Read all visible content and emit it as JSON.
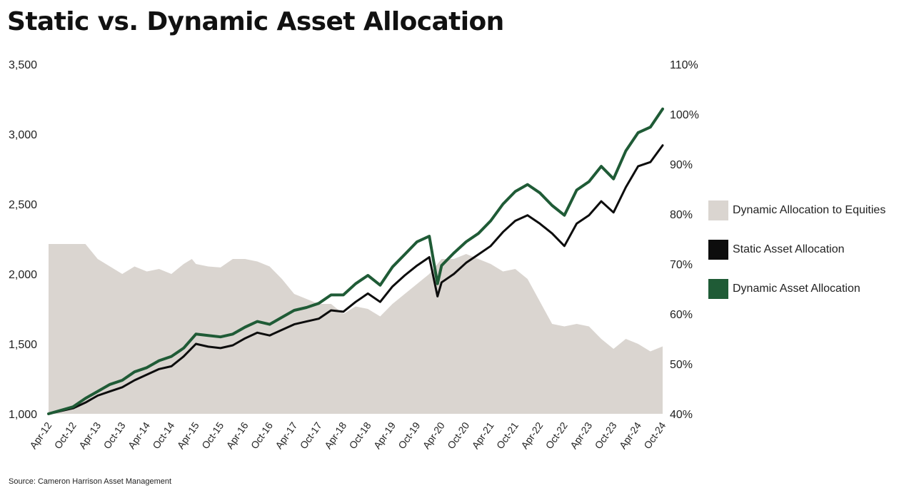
{
  "title": "Static vs. Dynamic Asset Allocation",
  "source": "Source: Cameron Harrison Asset Management",
  "colors": {
    "area": "#dad5d0",
    "static": "#0d0d0d",
    "dynamic": "#1f5b36"
  },
  "legend": [
    {
      "label": "Dynamic Allocation to Equities",
      "color": "#dad5d0"
    },
    {
      "label": "Static Asset Allocation",
      "color": "#0d0d0d"
    },
    {
      "label": "Dynamic Asset Allocation",
      "color": "#1f5b36"
    }
  ],
  "chart_data": {
    "type": "line",
    "left_axis": {
      "range": [
        1000,
        3500
      ],
      "ticks": [
        "1,000",
        "1,500",
        "2,000",
        "2,500",
        "3,000",
        "3,500"
      ]
    },
    "right_axis": {
      "range": [
        40,
        110
      ],
      "ticks": [
        "40%",
        "50%",
        "60%",
        "70%",
        "80%",
        "90%",
        "100%",
        "110%"
      ]
    },
    "x_tick_labels": [
      "Apr-12",
      "Oct-12",
      "Apr-13",
      "Oct-13",
      "Apr-14",
      "Oct-14",
      "Apr-15",
      "Oct-15",
      "Apr-16",
      "Oct-16",
      "Apr-17",
      "Oct-17",
      "Apr-18",
      "Oct-18",
      "Apr-19",
      "Oct-19",
      "Apr-20",
      "Oct-20",
      "Apr-21",
      "Oct-21",
      "Apr-22",
      "Oct-22",
      "Apr-23",
      "Oct-23",
      "Apr-24",
      "Oct-24"
    ],
    "grid": false,
    "legend_position": "right",
    "series": [
      {
        "name": "Dynamic Allocation to Equities",
        "type": "area",
        "axis": "right",
        "points": [
          [
            "Apr-12",
            74
          ],
          [
            "Oct-12",
            74
          ],
          [
            "Jan-13",
            74
          ],
          [
            "Apr-13",
            71
          ],
          [
            "Jul-13",
            69.5
          ],
          [
            "Oct-13",
            68
          ],
          [
            "Jan-14",
            69.5
          ],
          [
            "Apr-14",
            68.5
          ],
          [
            "Jul-14",
            69
          ],
          [
            "Oct-14",
            68
          ],
          [
            "Jan-15",
            70
          ],
          [
            "Mar-15",
            71
          ],
          [
            "Apr-15",
            70
          ],
          [
            "Jul-15",
            69.5
          ],
          [
            "Oct-15",
            69.3
          ],
          [
            "Jan-16",
            71
          ],
          [
            "Apr-16",
            71
          ],
          [
            "Jul-16",
            70.5
          ],
          [
            "Oct-16",
            69.5
          ],
          [
            "Jan-17",
            67
          ],
          [
            "Apr-17",
            64
          ],
          [
            "Jul-17",
            63
          ],
          [
            "Oct-17",
            62
          ],
          [
            "Jan-18",
            62
          ],
          [
            "Apr-18",
            60
          ],
          [
            "Jul-18",
            61.5
          ],
          [
            "Oct-18",
            61
          ],
          [
            "Jan-19",
            59.5
          ],
          [
            "Apr-19",
            62
          ],
          [
            "Jul-19",
            64
          ],
          [
            "Oct-19",
            66
          ],
          [
            "Jan-20",
            68
          ],
          [
            "Apr-20",
            71
          ],
          [
            "Jul-20",
            71
          ],
          [
            "Oct-20",
            72
          ],
          [
            "Jan-21",
            71
          ],
          [
            "Apr-21",
            70
          ],
          [
            "Jul-21",
            68.5
          ],
          [
            "Oct-21",
            69
          ],
          [
            "Jan-22",
            67
          ],
          [
            "Apr-22",
            62.5
          ],
          [
            "Jul-22",
            58
          ],
          [
            "Oct-22",
            57.5
          ],
          [
            "Jan-23",
            58
          ],
          [
            "Apr-23",
            57.5
          ],
          [
            "Jul-23",
            55
          ],
          [
            "Oct-23",
            53
          ],
          [
            "Jan-24",
            55
          ],
          [
            "Apr-24",
            54
          ],
          [
            "Jul-24",
            52.5
          ],
          [
            "Oct-24",
            53.5
          ]
        ]
      },
      {
        "name": "Static Asset Allocation",
        "type": "line",
        "axis": "left",
        "points": [
          [
            "Apr-12",
            1000
          ],
          [
            "Oct-12",
            1040
          ],
          [
            "Jan-13",
            1080
          ],
          [
            "Apr-13",
            1130
          ],
          [
            "Jul-13",
            1160
          ],
          [
            "Oct-13",
            1190
          ],
          [
            "Jan-14",
            1240
          ],
          [
            "Apr-14",
            1280
          ],
          [
            "Jul-14",
            1320
          ],
          [
            "Oct-14",
            1340
          ],
          [
            "Jan-15",
            1410
          ],
          [
            "Apr-15",
            1500
          ],
          [
            "Jul-15",
            1480
          ],
          [
            "Oct-15",
            1470
          ],
          [
            "Jan-16",
            1490
          ],
          [
            "Apr-16",
            1540
          ],
          [
            "Jul-16",
            1580
          ],
          [
            "Oct-16",
            1560
          ],
          [
            "Jan-17",
            1600
          ],
          [
            "Apr-17",
            1640
          ],
          [
            "Jul-17",
            1660
          ],
          [
            "Oct-17",
            1680
          ],
          [
            "Jan-18",
            1740
          ],
          [
            "Apr-18",
            1730
          ],
          [
            "Jul-18",
            1800
          ],
          [
            "Oct-18",
            1860
          ],
          [
            "Jan-19",
            1800
          ],
          [
            "Apr-19",
            1910
          ],
          [
            "Jul-19",
            1990
          ],
          [
            "Oct-19",
            2060
          ],
          [
            "Jan-20",
            2120
          ],
          [
            "Mar-20",
            1840
          ],
          [
            "Apr-20",
            1940
          ],
          [
            "Jul-20",
            2000
          ],
          [
            "Oct-20",
            2080
          ],
          [
            "Jan-21",
            2140
          ],
          [
            "Apr-21",
            2200
          ],
          [
            "Jul-21",
            2300
          ],
          [
            "Oct-21",
            2380
          ],
          [
            "Jan-22",
            2420
          ],
          [
            "Apr-22",
            2360
          ],
          [
            "Jul-22",
            2290
          ],
          [
            "Oct-22",
            2200
          ],
          [
            "Jan-23",
            2360
          ],
          [
            "Apr-23",
            2420
          ],
          [
            "Jul-23",
            2520
          ],
          [
            "Oct-23",
            2440
          ],
          [
            "Jan-24",
            2620
          ],
          [
            "Apr-24",
            2770
          ],
          [
            "Jul-24",
            2800
          ],
          [
            "Oct-24",
            2920
          ]
        ]
      },
      {
        "name": "Dynamic Asset Allocation",
        "type": "line",
        "axis": "left",
        "points": [
          [
            "Apr-12",
            1000
          ],
          [
            "Oct-12",
            1050
          ],
          [
            "Jan-13",
            1110
          ],
          [
            "Apr-13",
            1160
          ],
          [
            "Jul-13",
            1210
          ],
          [
            "Oct-13",
            1240
          ],
          [
            "Jan-14",
            1300
          ],
          [
            "Apr-14",
            1330
          ],
          [
            "Jul-14",
            1380
          ],
          [
            "Oct-14",
            1410
          ],
          [
            "Jan-15",
            1470
          ],
          [
            "Apr-15",
            1570
          ],
          [
            "Jul-15",
            1560
          ],
          [
            "Oct-15",
            1550
          ],
          [
            "Jan-16",
            1570
          ],
          [
            "Apr-16",
            1620
          ],
          [
            "Jul-16",
            1660
          ],
          [
            "Oct-16",
            1640
          ],
          [
            "Jan-17",
            1690
          ],
          [
            "Apr-17",
            1740
          ],
          [
            "Jul-17",
            1760
          ],
          [
            "Oct-17",
            1790
          ],
          [
            "Jan-18",
            1850
          ],
          [
            "Apr-18",
            1850
          ],
          [
            "Jul-18",
            1930
          ],
          [
            "Oct-18",
            1990
          ],
          [
            "Jan-19",
            1920
          ],
          [
            "Apr-19",
            2050
          ],
          [
            "Jul-19",
            2140
          ],
          [
            "Oct-19",
            2230
          ],
          [
            "Jan-20",
            2270
          ],
          [
            "Mar-20",
            1930
          ],
          [
            "Apr-20",
            2060
          ],
          [
            "Jul-20",
            2150
          ],
          [
            "Oct-20",
            2230
          ],
          [
            "Jan-21",
            2290
          ],
          [
            "Apr-21",
            2380
          ],
          [
            "Jul-21",
            2500
          ],
          [
            "Oct-21",
            2590
          ],
          [
            "Jan-22",
            2640
          ],
          [
            "Apr-22",
            2580
          ],
          [
            "Jul-22",
            2490
          ],
          [
            "Oct-22",
            2420
          ],
          [
            "Jan-23",
            2600
          ],
          [
            "Apr-23",
            2660
          ],
          [
            "Jul-23",
            2770
          ],
          [
            "Oct-23",
            2680
          ],
          [
            "Jan-24",
            2880
          ],
          [
            "Apr-24",
            3010
          ],
          [
            "Jul-24",
            3050
          ],
          [
            "Oct-24",
            3180
          ]
        ]
      }
    ]
  }
}
